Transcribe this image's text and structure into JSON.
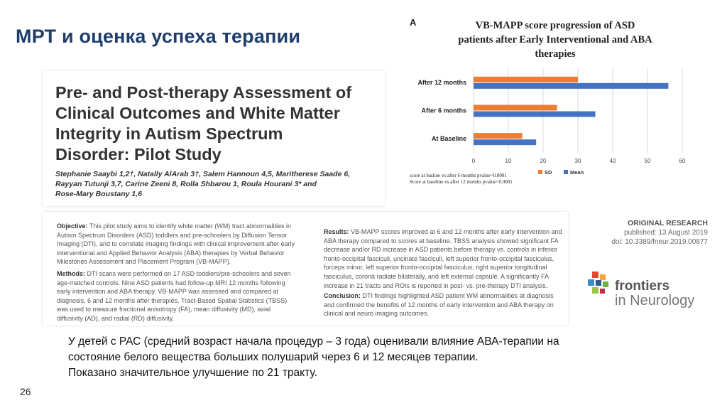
{
  "slide": {
    "title": "МРТ и оценка успеха терапии",
    "page_number": "26",
    "summary_lines": [
      "У детей с РАС (средний возраст начала процедур – 3 года) оценивали влияние АВА-терапии на",
      "состояние белого вещества больших полушарий через 6 и 12 месяцев терапии.",
      "Показано значительное улучшение по 21 тракту."
    ]
  },
  "paper": {
    "title_lines": [
      "Pre- and Post-therapy Assessment of",
      "Clinical Outcomes and White Matter",
      "Integrity in Autism Spectrum",
      "Disorder: Pilot Study"
    ],
    "authors_lines": [
      "Stephanie Saaybi 1,2†, Natally AlArab 3†, Salem Hannoun 4,5, Maritherese Saade 6,",
      "Rayyan Tutunji 3,7, Carine Zeeni 8, Rolla Shbarou 1, Roula Hourani 3* and",
      "Rose-Mary Boustany 1,6"
    ]
  },
  "abstract": {
    "objective_label": "Objective:",
    "objective_text": "This pilot study aims to identify white matter (WM) tract abnormalities in Autism Spectrum Disorders (ASD) toddlers and pre-schoolers by Diffusion Tensor Imaging (DTI), and to correlate imaging findings with clinical improvement after early interventional and Applied Behavior Analysis (ABA) therapies by Verbal Behavior Milestones Assessment and Placement Program (VB-MAPP).",
    "methods_label": "Methods:",
    "methods_text": "DTI scans were performed on 17 ASD toddlers/pre-schoolers and seven age-matched controls. Nine ASD patients had follow-up MRI 12 months following early intervention and ABA therapy. VB-MAPP was assessed and compared at diagnosis, 6 and 12 months after therapies. Tract-Based Spatial Statistics (TBSS) was used to measure fractional anisotropy (FA), mean diffusivity (MD), axial diffusivity (AD), and radial (RD) diffusivity.",
    "results_label": "Results:",
    "results_text": "VB-MAPP scores improved at 6 and 12 months after early intervention and ABA therapy compared to scores at baseline. TBSS analysis showed significant FA decrease and/or RD increase in ASD patients before therapy vs. controls in inferior fronto-occipital fasciculi, uncinate fasciculi, left superior fronto-occipital fasciculus, forceps minor, left superior fronto-occipital fasciculus, right superior longitudinal fasciculus, corona radiate bilaterally, and left external capsule. A significantly FA increase in 21 tracts and ROIs is reported in post- vs. pre-therapy DTI analysis.",
    "conclusion_label": "Conclusion:",
    "conclusion_text": "DTI findings highlighted ASD patient WM abnormalities at diagnosis and confirmed the benefits of 12 months of early intervention and ABA therapy on clinical and neuro imaging outcomes."
  },
  "article_meta": {
    "type": "ORIGINAL RESEARCH",
    "published": "published: 13 August 2019",
    "doi": "doi: 10.3389/fneur.2019.00877",
    "journal_word1": "frontiers",
    "journal_word2": "in Neurology"
  },
  "chart": {
    "letter": "A",
    "title_lines": [
      "VB-MAPP score progression of ASD",
      "patients after Early Interventional and ABA",
      "therapies"
    ],
    "notes": [
      "score at basline vs after 6 months pvalue<0.0001",
      "Score at baseline vs after 12 months pvalue<0.0001"
    ]
  },
  "chart_data": {
    "type": "bar",
    "orientation": "horizontal",
    "categories": [
      "After 12 months",
      "After 6 months",
      "At Baseline"
    ],
    "series": [
      {
        "name": "SD",
        "color": "#ed7d31",
        "values": [
          30,
          24,
          14
        ]
      },
      {
        "name": "Mean",
        "color": "#4472c4",
        "values": [
          56,
          35,
          18
        ]
      }
    ],
    "xlim": [
      0,
      60
    ],
    "xticks": [
      0,
      10,
      20,
      30,
      40,
      50,
      60
    ],
    "grid": true,
    "legend_position": "bottom"
  },
  "colors": {
    "title": "#1f3d6b",
    "sd": "#ed7d31",
    "mean": "#4472c4"
  }
}
